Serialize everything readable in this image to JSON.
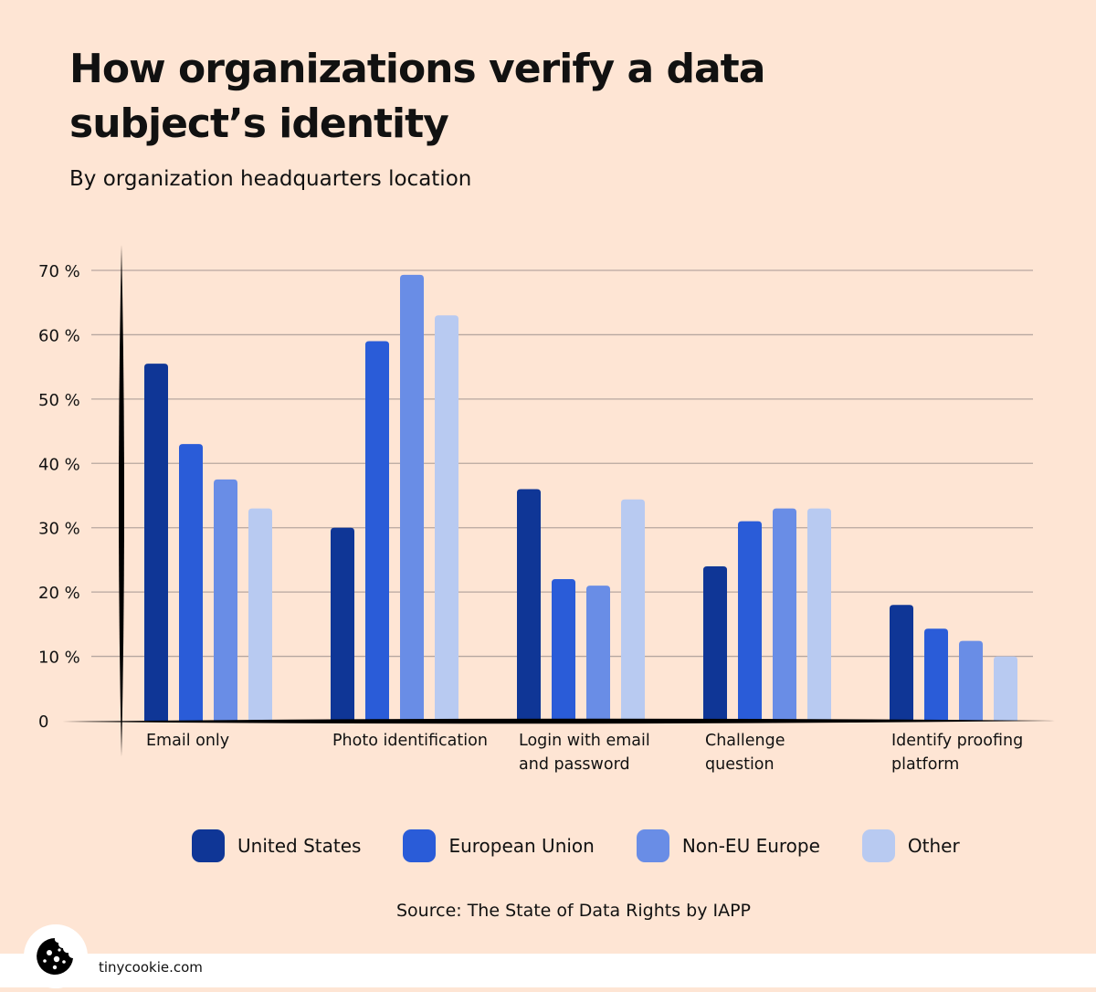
{
  "title": "How organizations verify a data subject’s identity",
  "subtitle": "By organization headquarters location",
  "source": "Source: The State of Data Rights by IAPP",
  "site": "tinycookie.com",
  "logo_icon": "cookie-icon",
  "chart_data": {
    "type": "bar",
    "title": "How organizations verify a data subject’s identity",
    "subtitle": "By organization headquarters location",
    "categories": [
      "Email only",
      "Photo identification",
      "Login with email and password",
      "Challenge question",
      "Identify proofing platform"
    ],
    "category_lines": [
      [
        "Email only"
      ],
      [
        "Photo identification"
      ],
      [
        "Login with email",
        "and password"
      ],
      [
        "Challenge",
        "question"
      ],
      [
        "Identify proofing",
        "platform"
      ]
    ],
    "series": [
      {
        "name": "United States",
        "color": "#0f3696",
        "values": [
          55.5,
          30,
          36,
          24,
          18
        ]
      },
      {
        "name": "European Union",
        "color": "#2a5cd8",
        "values": [
          43,
          59,
          22,
          31,
          14.3
        ]
      },
      {
        "name": "Non-EU Europe",
        "color": "#698de6",
        "values": [
          37.5,
          69.3,
          21,
          33,
          12.4
        ]
      },
      {
        "name": "Other",
        "color": "#b8caf1",
        "values": [
          33,
          63,
          34.4,
          33,
          10
        ]
      }
    ],
    "yticks": [
      "0",
      "10 %",
      "20 %",
      "30 %",
      "40 %",
      "50 %",
      "60 %",
      "70 %"
    ],
    "ylim": [
      0,
      70
    ],
    "grid": true,
    "legend": "bottom"
  }
}
